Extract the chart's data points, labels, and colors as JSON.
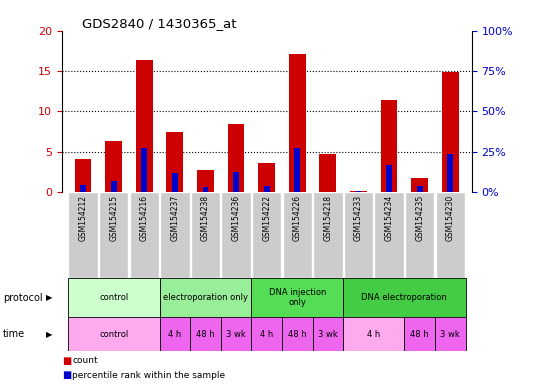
{
  "title": "GDS2840 / 1430365_at",
  "samples": [
    "GSM154212",
    "GSM154215",
    "GSM154216",
    "GSM154237",
    "GSM154238",
    "GSM154236",
    "GSM154222",
    "GSM154226",
    "GSM154218",
    "GSM154233",
    "GSM154234",
    "GSM154235",
    "GSM154230"
  ],
  "count_values": [
    4.1,
    6.3,
    16.4,
    7.5,
    2.7,
    8.4,
    3.6,
    17.1,
    4.7,
    0.1,
    11.4,
    1.7,
    14.9
  ],
  "percentile_values": [
    0.9,
    1.4,
    5.4,
    2.4,
    0.6,
    2.5,
    0.8,
    5.5,
    0.0,
    0.1,
    3.4,
    0.8,
    4.7
  ],
  "bar_color": "#cc0000",
  "percentile_color": "#0000cc",
  "ylim_left": [
    0,
    20
  ],
  "ylim_right": [
    0,
    100
  ],
  "yticks_left": [
    0,
    5,
    10,
    15,
    20
  ],
  "yticks_right": [
    0,
    25,
    50,
    75,
    100
  ],
  "ytick_labels_left": [
    "0",
    "5",
    "10",
    "15",
    "20"
  ],
  "ytick_labels_right": [
    "0%",
    "25%",
    "50%",
    "75%",
    "100%"
  ],
  "protocol_groups": [
    {
      "label": "control",
      "start": 0,
      "end": 3,
      "color": "#ccffcc"
    },
    {
      "label": "electroporation only",
      "start": 3,
      "end": 6,
      "color": "#99ee99"
    },
    {
      "label": "DNA injection\nonly",
      "start": 6,
      "end": 9,
      "color": "#55dd55"
    },
    {
      "label": "DNA electroporation",
      "start": 9,
      "end": 13,
      "color": "#44cc44"
    }
  ],
  "time_groups": [
    {
      "label": "control",
      "start": 0,
      "end": 3,
      "color": "#ffaaee"
    },
    {
      "label": "4 h",
      "start": 3,
      "end": 4,
      "color": "#ee66ee"
    },
    {
      "label": "48 h",
      "start": 4,
      "end": 5,
      "color": "#ee66ee"
    },
    {
      "label": "3 wk",
      "start": 5,
      "end": 6,
      "color": "#ee66ee"
    },
    {
      "label": "4 h",
      "start": 6,
      "end": 7,
      "color": "#ee66ee"
    },
    {
      "label": "48 h",
      "start": 7,
      "end": 8,
      "color": "#ee66ee"
    },
    {
      "label": "3 wk",
      "start": 8,
      "end": 9,
      "color": "#ee66ee"
    },
    {
      "label": "4 h",
      "start": 9,
      "end": 11,
      "color": "#ffaaee"
    },
    {
      "label": "48 h",
      "start": 11,
      "end": 12,
      "color": "#ee66ee"
    },
    {
      "label": "3 wk",
      "start": 12,
      "end": 13,
      "color": "#ee66ee"
    }
  ],
  "bar_width": 0.55,
  "tick_color_left": "#cc0000",
  "tick_color_right": "#0000cc",
  "sample_box_color": "#cccccc",
  "sample_box_edge": "#ffffff"
}
